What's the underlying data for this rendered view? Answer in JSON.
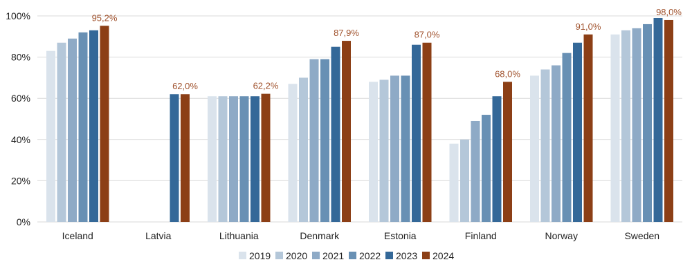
{
  "chart_data": {
    "type": "bar",
    "title": "",
    "xlabel": "",
    "ylabel": "",
    "ylim": [
      0,
      100
    ],
    "yticks": [
      "0%",
      "20%",
      "40%",
      "60%",
      "80%",
      "100%"
    ],
    "grid": true,
    "legend_position": "bottom",
    "categories": [
      "Iceland",
      "Latvia",
      "Lithuania",
      "Denmark",
      "Estonia",
      "Finland",
      "Norway",
      "Sweden"
    ],
    "series": [
      {
        "name": "2019",
        "color": "#dae3ec",
        "values": [
          83,
          null,
          61,
          67,
          68,
          38,
          71,
          91
        ]
      },
      {
        "name": "2020",
        "color": "#b4c7d9",
        "values": [
          87,
          null,
          61,
          70,
          69,
          40,
          74,
          93
        ]
      },
      {
        "name": "2021",
        "color": "#8eaac6",
        "values": [
          89,
          null,
          61,
          79,
          71,
          49,
          76,
          94
        ]
      },
      {
        "name": "2022",
        "color": "#6890b4",
        "values": [
          92,
          null,
          61,
          79,
          71,
          52,
          82,
          96
        ]
      },
      {
        "name": "2023",
        "color": "#346898",
        "values": [
          93,
          62,
          61,
          85,
          86,
          61,
          87,
          99
        ]
      },
      {
        "name": "2024",
        "color": "#8c3f16",
        "values": [
          95.2,
          62.0,
          62.2,
          87.9,
          87.0,
          68.0,
          91.0,
          98.0
        ]
      }
    ],
    "data_labels": [
      "95,2%",
      "62,0%",
      "62,2%",
      "87,9%",
      "87,0%",
      "68,0%",
      "91,0%",
      "98,0%"
    ],
    "label_color": "#a0522d"
  }
}
